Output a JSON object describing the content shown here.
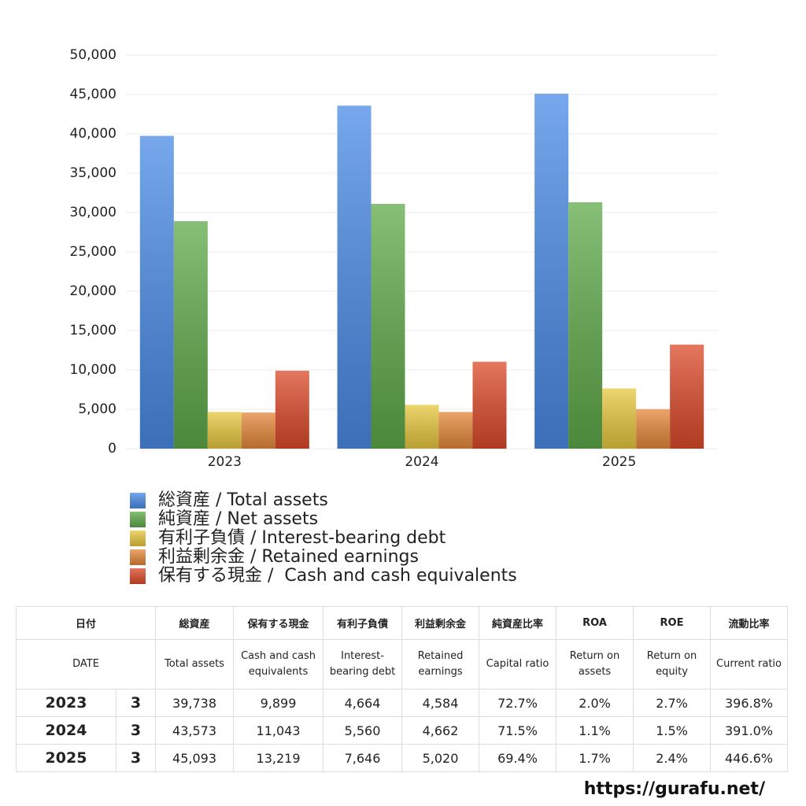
{
  "chart_data": {
    "type": "bar",
    "categories": [
      "2023",
      "2024",
      "2025"
    ],
    "series": [
      {
        "name": "総資産 / Total assets",
        "color": "#4a8be6",
        "values": [
          39738,
          43573,
          45093
        ]
      },
      {
        "name": "純資産 / Net assets",
        "color": "#5faa4a",
        "values": [
          28900,
          31100,
          31300
        ]
      },
      {
        "name": "有利子負債 / Interest-bearing debt",
        "color": "#e8c840",
        "values": [
          4664,
          5560,
          7646
        ]
      },
      {
        "name": "利益剰余金 / Retained earnings",
        "color": "#e5883a",
        "values": [
          4584,
          4662,
          5020
        ]
      },
      {
        "name": "保有する現金 /  Cash and cash equivalents",
        "color": "#dc4a2a",
        "values": [
          9899,
          11043,
          13219
        ]
      }
    ],
    "ylim": [
      0,
      50000
    ],
    "yticks": [
      0,
      {
        "value": 5000,
        "label": "5,000"
      },
      {
        "value": 10000,
        "label": "10,000"
      },
      {
        "value": 15000,
        "label": "15,000"
      },
      {
        "value": 20000,
        "label": "20,000"
      },
      {
        "value": 25000,
        "label": "25,000"
      },
      {
        "value": 30000,
        "label": "30,000"
      },
      {
        "value": 35000,
        "label": "35,000"
      },
      {
        "value": 40000,
        "label": "40,000"
      },
      {
        "value": 45000,
        "label": "45,000"
      },
      {
        "value": 50000,
        "label": "50,000"
      }
    ],
    "grid": true
  },
  "table": {
    "header_jp": [
      "日付",
      "総資産",
      "保有する現金",
      "有利子負債",
      "利益剰余金",
      "純資産比率",
      "ROA",
      "ROE",
      "流動比率"
    ],
    "header_en": [
      "DATE",
      "Total assets",
      "Cash and cash equivalents",
      "Interest-bearing debt",
      "Retained earnings",
      "Capital ratio",
      "Return on assets",
      "Return on equity",
      "Current ratio"
    ],
    "rows": [
      [
        "2023",
        "3",
        "39,738",
        "9,899",
        "4,664",
        "4,584",
        "72.7%",
        "2.0%",
        "2.7%",
        "396.8%"
      ],
      [
        "2024",
        "3",
        "43,573",
        "11,043",
        "5,560",
        "4,662",
        "71.5%",
        "1.1%",
        "1.5%",
        "391.0%"
      ],
      [
        "2025",
        "3",
        "45,093",
        "13,219",
        "7,646",
        "5,020",
        "69.4%",
        "1.7%",
        "2.4%",
        "446.6%"
      ]
    ]
  },
  "footer": "https://gurafu.net/"
}
